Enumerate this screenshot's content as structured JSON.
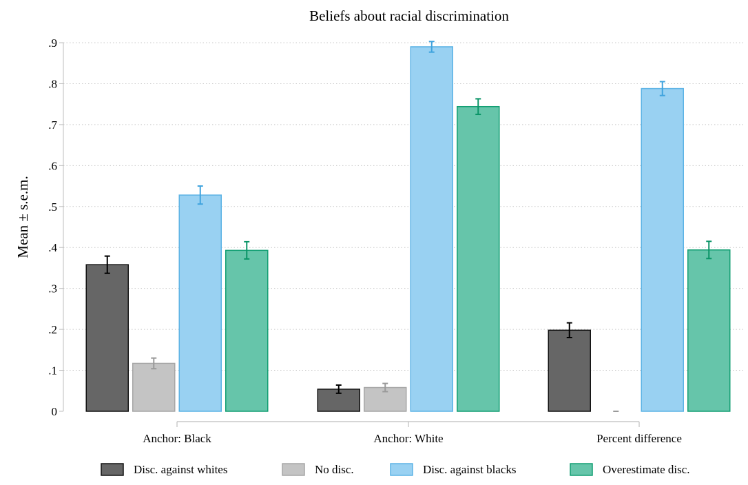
{
  "chart_data": {
    "type": "bar",
    "title": "Beliefs about racial discrimination",
    "ylabel": "Mean ± s.e.m.",
    "xlabel": "",
    "ylim": [
      0,
      0.9
    ],
    "yticks": [
      0,
      0.1,
      0.2,
      0.3,
      0.4,
      0.5,
      0.6,
      0.7,
      0.8,
      0.9
    ],
    "ytick_labels": [
      "0",
      ".1",
      ".2",
      ".3",
      ".4",
      ".5",
      ".6",
      ".7",
      ".8",
      ".9"
    ],
    "grid": true,
    "legend_position": "bottom",
    "categories": [
      "Anchor: Black",
      "Anchor: White",
      "Percent difference"
    ],
    "series": [
      {
        "name": "Disc. against whites",
        "color": "#666666",
        "border": "#111111",
        "err_color": "#000000",
        "values": [
          0.358,
          0.054,
          0.198
        ],
        "errors": [
          0.021,
          0.01,
          0.018
        ]
      },
      {
        "name": "No disc.",
        "color": "#c4c4c4",
        "border": "#a6a6a6",
        "err_color": "#9a9a9a",
        "values": [
          0.117,
          0.058,
          0.0
        ],
        "errors": [
          0.013,
          0.01,
          0.0
        ]
      },
      {
        "name": "Disc. against blacks",
        "color": "#99d1f2",
        "border": "#5cb3e5",
        "err_color": "#3fa3de",
        "values": [
          0.528,
          0.89,
          0.788
        ],
        "errors": [
          0.022,
          0.013,
          0.017
        ]
      },
      {
        "name": "Overestimate disc.",
        "color": "#66c5aa",
        "border": "#119e72",
        "err_color": "#0a9467",
        "values": [
          0.393,
          0.744,
          0.394
        ],
        "errors": [
          0.021,
          0.019,
          0.021
        ]
      }
    ]
  }
}
